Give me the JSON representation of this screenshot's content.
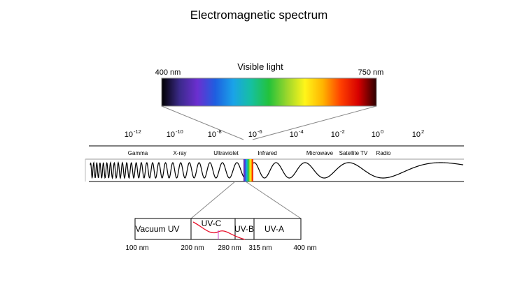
{
  "title": "Electromagnetic spectrum",
  "visible": {
    "label": "Visible light",
    "start_label": "400 nm",
    "end_label": "750 nm",
    "colors": [
      "#000000",
      "#3b2a8a",
      "#6b2fd0",
      "#1e5fe0",
      "#1aa3e8",
      "#16c0a0",
      "#23c23a",
      "#9ad62c",
      "#fff51a",
      "#ffb400",
      "#ff4000",
      "#d60000",
      "#2a0000"
    ]
  },
  "scale": {
    "ticks": [
      {
        "base": "10",
        "exp": "-12"
      },
      {
        "base": "10",
        "exp": "-10"
      },
      {
        "base": "10",
        "exp": "-8"
      },
      {
        "base": "10",
        "exp": "-6"
      },
      {
        "base": "10",
        "exp": "-4"
      },
      {
        "base": "10",
        "exp": "-2"
      },
      {
        "base": "10",
        "exp": "0"
      },
      {
        "base": "10",
        "exp": "2"
      }
    ],
    "bands": [
      "Gamma",
      "X-ray",
      "Ultraviolet",
      "Infrared",
      "Microwave",
      "Satellite TV",
      "Radio"
    ]
  },
  "uv": {
    "segments": [
      "Vacuum UV",
      "UV-C",
      "UV-B",
      "UV-A"
    ],
    "wavelengths": [
      "100 nm",
      "200 nm",
      "280 nm",
      "315 nm",
      "400 nm"
    ],
    "curve_color": "#e8102a",
    "marker_color": "#cc44cc"
  }
}
